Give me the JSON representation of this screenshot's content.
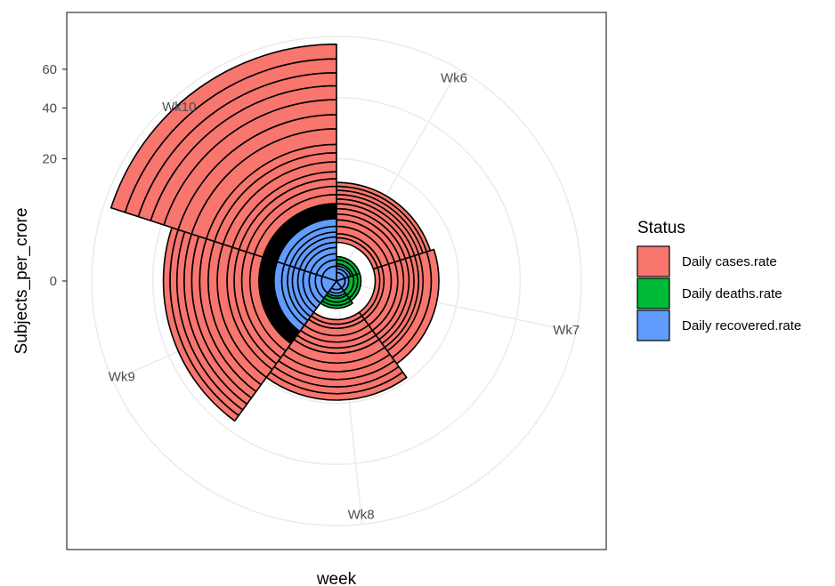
{
  "chart_data": {
    "type": "polar-bar",
    "title": "",
    "xlabel": "week",
    "ylabel": "Subjects_per_crore",
    "categories": [
      "Wk6",
      "Wk7",
      "Wk8",
      "Wk9",
      "Wk10"
    ],
    "y_ticks": [
      "0",
      "20",
      "40",
      "60"
    ],
    "scale": "sqrt",
    "grid": true,
    "legend_title": "Status",
    "legend_position": "right",
    "series": [
      {
        "name": "Daily cases.rate",
        "color": "#F8766D",
        "segments": [
          [
            2,
            2.5,
            3,
            4,
            5,
            6,
            7,
            8,
            9,
            10,
            11,
            12,
            13
          ],
          [
            2,
            2.5,
            3,
            4,
            5,
            6,
            7,
            8,
            9,
            10,
            12,
            14
          ],
          [
            2,
            2.5,
            3,
            4,
            5,
            6,
            7,
            9,
            11,
            13,
            15,
            17,
            19
          ],
          [
            8,
            10,
            12,
            14,
            16,
            19,
            22,
            25,
            28,
            31,
            34,
            37,
            40
          ],
          [
            8,
            10,
            12,
            14,
            16,
            19,
            22,
            25,
            31,
            37,
            44,
            51,
            58,
            66,
            75
          ]
        ]
      },
      {
        "name": "Daily deaths.rate",
        "color": "#00BA38",
        "segments": [
          [
            0,
            0.2,
            0.4,
            0.6,
            0.8
          ],
          [
            0,
            0.2,
            0.4,
            0.6,
            0.8
          ],
          [
            0,
            0.2,
            0.4,
            0.6,
            0.8,
            1.0
          ],
          [
            5.2,
            5.4,
            5.6,
            5.8,
            6.0,
            6.2,
            6.4,
            6.6,
            6.8,
            7.0,
            7.2,
            7.4,
            7.6,
            7.8,
            8.0
          ],
          [
            5.2,
            5.4,
            5.6,
            5.8,
            6.0,
            6.2,
            6.4,
            6.6,
            6.8,
            7.0,
            7.2,
            7.4,
            7.6,
            7.8,
            8.0
          ]
        ]
      },
      {
        "name": "Daily recovered.rate",
        "color": "#619CFF",
        "segments": [
          [
            0,
            0.1,
            0.2,
            0.3
          ],
          [
            0,
            0.1,
            0.2
          ],
          [
            0,
            0.1,
            0.2,
            0.3
          ],
          [
            0,
            0.3,
            0.6,
            1.0,
            1.5,
            2.0,
            2.6,
            3.2,
            4.0,
            5.2
          ],
          [
            0,
            0.3,
            0.6,
            1.0,
            1.5,
            2.0,
            2.6,
            3.2,
            4.0,
            5.2
          ]
        ]
      }
    ]
  }
}
